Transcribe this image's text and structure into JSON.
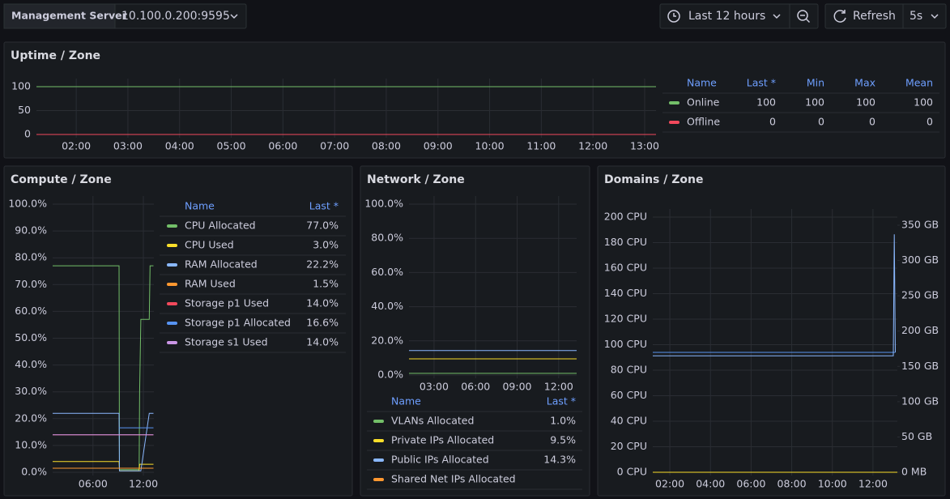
{
  "toolbar": {
    "datasource_label": "Management Server",
    "datasource_value": "10.100.0.200:9595",
    "time_range": "Last 12 hours",
    "refresh": "Refresh",
    "refresh_interval": "5s"
  },
  "chart_data": [
    {
      "type": "line",
      "title": "Uptime / Zone",
      "x": [
        1.23,
        13.22
      ],
      "xlim": [
        1.23,
        13.22
      ],
      "xticks": [
        {
          "value": 2,
          "label": "02:00"
        },
        {
          "value": 3,
          "label": "03:00"
        },
        {
          "value": 4,
          "label": "04:00"
        },
        {
          "value": 5,
          "label": "05:00"
        },
        {
          "value": 6,
          "label": "06:00"
        },
        {
          "value": 7,
          "label": "07:00"
        },
        {
          "value": 8,
          "label": "08:00"
        },
        {
          "value": 9,
          "label": "09:00"
        },
        {
          "value": 10,
          "label": "10:00"
        },
        {
          "value": 11,
          "label": "11:00"
        },
        {
          "value": 12,
          "label": "12:00"
        },
        {
          "value": 13,
          "label": "13:00"
        }
      ],
      "ylim": [
        0,
        100
      ],
      "yticks": [
        0,
        50,
        100
      ],
      "grid": true,
      "legend_columns": [
        "Name",
        "Last *",
        "Min",
        "Max",
        "Mean"
      ],
      "series": [
        {
          "name": "Online",
          "color": "#73bf69",
          "values": [
            100,
            100
          ],
          "stats": [
            100,
            100,
            100,
            100
          ]
        },
        {
          "name": "Offline",
          "color": "#f2495c",
          "values": [
            0,
            0
          ],
          "stats": [
            0,
            0,
            0,
            0
          ]
        }
      ]
    },
    {
      "type": "line",
      "title": "Compute / Zone",
      "x": [
        1.2,
        9.1,
        9.15,
        11.5,
        11.55,
        11.7,
        12.7,
        12.8,
        13.2
      ],
      "xlim": [
        1.2,
        13.25
      ],
      "xticks": [
        {
          "value": 6,
          "label": "06:00"
        },
        {
          "value": 12,
          "label": "12:00"
        }
      ],
      "ylim": [
        0,
        100
      ],
      "yticks": [
        {
          "value": 0,
          "label": "0.0%"
        },
        {
          "value": 10,
          "label": "10.0%"
        },
        {
          "value": 20,
          "label": "20.0%"
        },
        {
          "value": 30,
          "label": "30.0%"
        },
        {
          "value": 40,
          "label": "40.0%"
        },
        {
          "value": 50,
          "label": "50.0%"
        },
        {
          "value": 60,
          "label": "60.0%"
        },
        {
          "value": 70,
          "label": "70.0%"
        },
        {
          "value": 80,
          "label": "80.0%"
        },
        {
          "value": 90,
          "label": "90.0%"
        },
        {
          "value": 100,
          "label": "100.0%"
        }
      ],
      "grid": true,
      "legend_columns": [
        "Name",
        "Last *"
      ],
      "series": [
        {
          "name": "CPU Allocated",
          "color": "#73bf69",
          "values": [
            77,
            77,
            1,
            1,
            30,
            57,
            57,
            77,
            77
          ],
          "stats": [
            "77.0%"
          ]
        },
        {
          "name": "CPU Used",
          "color": "#fade2a",
          "values": [
            4,
            4,
            0.5,
            0.5,
            3,
            3,
            3,
            3,
            3
          ],
          "stats": [
            "3.0%"
          ]
        },
        {
          "name": "RAM Allocated",
          "color": "#8ab8ff",
          "values": [
            22,
            22,
            0.5,
            0.5,
            0.5,
            0.5,
            22,
            22,
            22
          ],
          "stats": [
            "22.2%"
          ]
        },
        {
          "name": "RAM Used",
          "color": "#ff9830",
          "values": [
            1.5,
            1.5,
            1.5,
            1.5,
            1.5,
            1.5,
            1.5,
            1.5,
            1.5
          ],
          "stats": [
            "1.5%"
          ]
        },
        {
          "name": "Storage p1 Used",
          "color": "#f2495c",
          "values": [
            14,
            14,
            14,
            14,
            14,
            14,
            14,
            14,
            14
          ],
          "stats": [
            "14.0%"
          ]
        },
        {
          "name": "Storage p1 Allocated",
          "color": "#5794f2",
          "values": [
            null,
            16.6,
            16.6,
            16.6,
            16.6,
            16.6,
            16.6,
            16.6,
            16.6
          ],
          "stats": [
            "16.6%"
          ]
        },
        {
          "name": "Storage s1 Used",
          "color": "#ca95e5",
          "values": [
            14,
            14,
            14,
            14,
            14,
            14,
            14,
            14,
            14
          ],
          "stats": [
            "14.0%"
          ]
        }
      ]
    },
    {
      "type": "line",
      "title": "Network / Zone",
      "x": [
        1.19,
        13.3
      ],
      "xlim": [
        1.19,
        13.3
      ],
      "xticks": [
        {
          "value": 3,
          "label": "03:00"
        },
        {
          "value": 6,
          "label": "06:00"
        },
        {
          "value": 9,
          "label": "09:00"
        },
        {
          "value": 12,
          "label": "12:00"
        }
      ],
      "ylim": [
        0,
        100
      ],
      "yticks": [
        {
          "value": 0,
          "label": "0.0%"
        },
        {
          "value": 20,
          "label": "20.0%"
        },
        {
          "value": 40,
          "label": "40.0%"
        },
        {
          "value": 60,
          "label": "60.0%"
        },
        {
          "value": 80,
          "label": "80.0%"
        },
        {
          "value": 100,
          "label": "100.0%"
        }
      ],
      "grid": true,
      "legend_columns": [
        "Name",
        "Last *"
      ],
      "series": [
        {
          "name": "VLANs Allocated",
          "color": "#73bf69",
          "values": [
            1,
            1
          ],
          "stats": [
            "1.0%"
          ]
        },
        {
          "name": "Private IPs Allocated",
          "color": "#fade2a",
          "values": [
            9.5,
            9.5
          ],
          "stats": [
            "9.5%"
          ]
        },
        {
          "name": "Public IPs Allocated",
          "color": "#8ab8ff",
          "values": [
            14.3,
            14.3
          ],
          "stats": [
            "14.3%"
          ]
        },
        {
          "name": "Shared Net IPs Allocated",
          "color": "#ff9830",
          "values": [
            null,
            null
          ],
          "stats": []
        }
      ]
    },
    {
      "type": "line",
      "title": "Domains / Zone",
      "x": [
        1.16,
        13.0,
        13.05,
        13.1,
        13.2
      ],
      "xlim": [
        1.16,
        13.2
      ],
      "xticks": [
        {
          "value": 2,
          "label": "02:00"
        },
        {
          "value": 4,
          "label": "04:00"
        },
        {
          "value": 6,
          "label": "06:00"
        },
        {
          "value": 8,
          "label": "08:00"
        },
        {
          "value": 10,
          "label": "10:00"
        },
        {
          "value": 12,
          "label": "12:00"
        }
      ],
      "ylim": [
        0,
        200
      ],
      "yticks": [
        {
          "value": 0,
          "label": "0 CPU"
        },
        {
          "value": 20,
          "label": "20 CPU"
        },
        {
          "value": 40,
          "label": "40 CPU"
        },
        {
          "value": 60,
          "label": "60 CPU"
        },
        {
          "value": 80,
          "label": "80 CPU"
        },
        {
          "value": 100,
          "label": "100 CPU"
        },
        {
          "value": 120,
          "label": "120 CPU"
        },
        {
          "value": 140,
          "label": "140 CPU"
        },
        {
          "value": 160,
          "label": "160 CPU"
        },
        {
          "value": 180,
          "label": "180 CPU"
        },
        {
          "value": 200,
          "label": "200 CPU"
        }
      ],
      "y2lim": [
        0,
        361.5
      ],
      "y2ticks": [
        {
          "value": 0,
          "label": "0 MB"
        },
        {
          "value": 50,
          "label": "50 GB"
        },
        {
          "value": 100,
          "label": "100 GB"
        },
        {
          "value": 150,
          "label": "150 GB"
        },
        {
          "value": 200,
          "label": "200 GB"
        },
        {
          "value": 250,
          "label": "250 GB"
        },
        {
          "value": 300,
          "label": "300 GB"
        },
        {
          "value": 350,
          "label": "350 GB"
        }
      ],
      "grid": true,
      "series": [
        {
          "color": "#5794f2",
          "values": [
            94,
            94,
            94,
            94,
            null
          ]
        },
        {
          "color": "#8ab8ff",
          "axis": "y2",
          "values": [
            165,
            165,
            337,
            170,
            null
          ]
        },
        {
          "color": "#fade2a",
          "values": [
            0,
            0,
            0,
            0,
            0
          ]
        }
      ]
    }
  ]
}
